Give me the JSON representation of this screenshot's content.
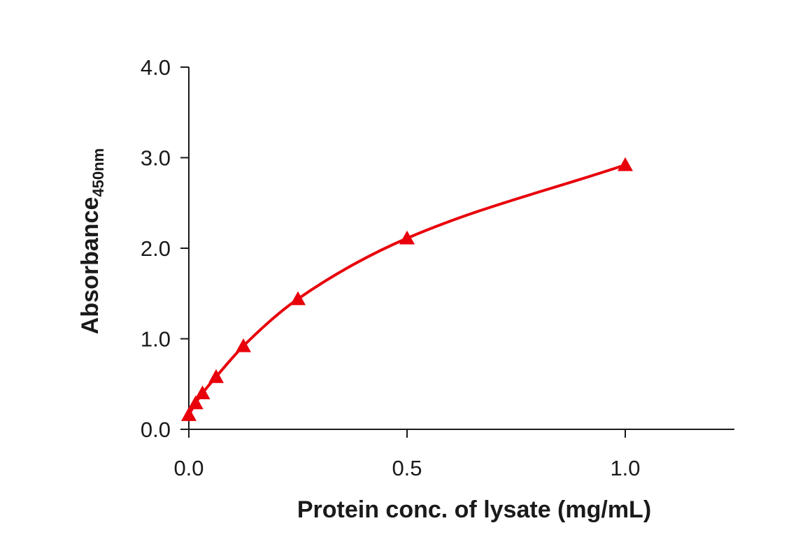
{
  "chart_data": {
    "type": "scatter",
    "title": "",
    "xlabel": "Protein conc. of lysate (mg/mL)",
    "ylabel": "Absorbance",
    "ylabel_subscript": "450nm",
    "xlim": [
      0,
      1.25
    ],
    "ylim": [
      0,
      4.0
    ],
    "x_ticks": [
      0.0,
      0.5,
      1.0
    ],
    "x_tick_labels": [
      "0.0",
      "0.5",
      "1.0"
    ],
    "y_ticks": [
      0.0,
      1.0,
      2.0,
      3.0,
      4.0
    ],
    "y_tick_labels": [
      "0.0",
      "1.0",
      "2.0",
      "3.0",
      "4.0"
    ],
    "grid": false,
    "series": [
      {
        "marker": "triangle",
        "color": "#e8000b",
        "fit_line": true,
        "x": [
          0.0,
          0.0156,
          0.0313,
          0.0625,
          0.125,
          0.25,
          0.5,
          1.0
        ],
        "y": [
          0.16,
          0.29,
          0.4,
          0.58,
          0.92,
          1.44,
          2.11,
          2.92
        ]
      }
    ]
  }
}
